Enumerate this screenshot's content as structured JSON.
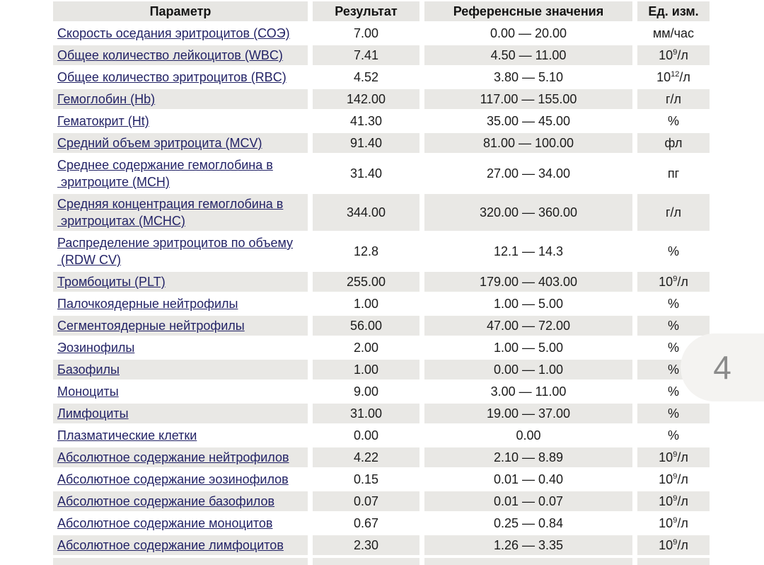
{
  "page": {
    "badge_number": "4"
  },
  "table": {
    "headers": [
      "Параметр",
      "Результат",
      "Референсные значения",
      "Ед. изм."
    ],
    "rows": [
      {
        "param": "Скорость оседания эритроцитов (СОЭ)",
        "result": "7.00",
        "ref": "0.00 — 20.00",
        "unit": "мм/час"
      },
      {
        "param": "Общее количество лейкоцитов (WBC)",
        "result": "7.41",
        "ref": "4.50 — 11.00",
        "unit": "10^9/л"
      },
      {
        "param": "Общее количество эритроцитов (RBC)",
        "result": "4.52",
        "ref": "3.80 — 5.10",
        "unit": "10^12/л"
      },
      {
        "param": "Гемоглобин (Hb)",
        "result": "142.00",
        "ref": "117.00 — 155.00",
        "unit": "г/л"
      },
      {
        "param": "Гематокрит (Ht)",
        "result": "41.30",
        "ref": "35.00 — 45.00",
        "unit": "%"
      },
      {
        "param": "Средний объем эритроцита (MCV)",
        "result": "91.40",
        "ref": "81.00 — 100.00",
        "unit": "фл"
      },
      {
        "param": "Среднее содержание гемоглобина в\n эритроците (MCH)",
        "result": "31.40",
        "ref": "27.00 — 34.00",
        "unit": "пг"
      },
      {
        "param": "Средняя концентрация гемоглобина в\n эритроцитах (MCHC)",
        "result": "344.00",
        "ref": "320.00 — 360.00",
        "unit": "г/л"
      },
      {
        "param": "Распределение эритроцитов по объему\n (RDW CV)",
        "result": "12.8",
        "ref": "12.1 — 14.3",
        "unit": "%"
      },
      {
        "param": "Тромбоциты (PLT)",
        "result": "255.00",
        "ref": "179.00 — 403.00",
        "unit": "10^9/л"
      },
      {
        "param": "Палочкоядерные нейтрофилы",
        "result": "1.00",
        "ref": "1.00 — 5.00",
        "unit": "%"
      },
      {
        "param": "Сегментоядерные нейтрофилы",
        "result": "56.00",
        "ref": "47.00 — 72.00",
        "unit": "%"
      },
      {
        "param": "Эозинофилы",
        "result": "2.00",
        "ref": "1.00 — 5.00",
        "unit": "%"
      },
      {
        "param": "Базофилы",
        "result": "1.00",
        "ref": "0.00 — 1.00",
        "unit": "%"
      },
      {
        "param": "Моноциты",
        "result": "9.00",
        "ref": "3.00 — 11.00",
        "unit": "%"
      },
      {
        "param": "Лимфоциты",
        "result": "31.00",
        "ref": "19.00 — 37.00",
        "unit": "%"
      },
      {
        "param": "Плазматические клетки",
        "result": "0.00",
        "ref": "0.00",
        "unit": "%"
      },
      {
        "param": "Абсолютное содержание нейтрофилов",
        "result": "4.22",
        "ref": "2.10 — 8.89",
        "unit": "10^9/л"
      },
      {
        "param": "Абсолютное содержание эозинофилов",
        "result": "0.15",
        "ref": "0.01 — 0.40",
        "unit": "10^9/л"
      },
      {
        "param": "Абсолютное содержание базофилов",
        "result": "0.07",
        "ref": "0.01 — 0.07",
        "unit": "10^9/л"
      },
      {
        "param": "Абсолютное содержание моноцитов",
        "result": "0.67",
        "ref": "0.25 — 0.84",
        "unit": "10^9/л"
      },
      {
        "param": "Абсолютное содержание лимфоцитов",
        "result": "2.30",
        "ref": "1.26 — 3.35",
        "unit": "10^9/л"
      }
    ]
  },
  "colors": {
    "header_gray": "#e7e6e3",
    "row_gray": "#e9e8e5",
    "link_navy": "#232366",
    "text_dark": "#1b1b1b",
    "badge_bg": "#f4f3f1",
    "badge_text": "#8b8b8b"
  }
}
